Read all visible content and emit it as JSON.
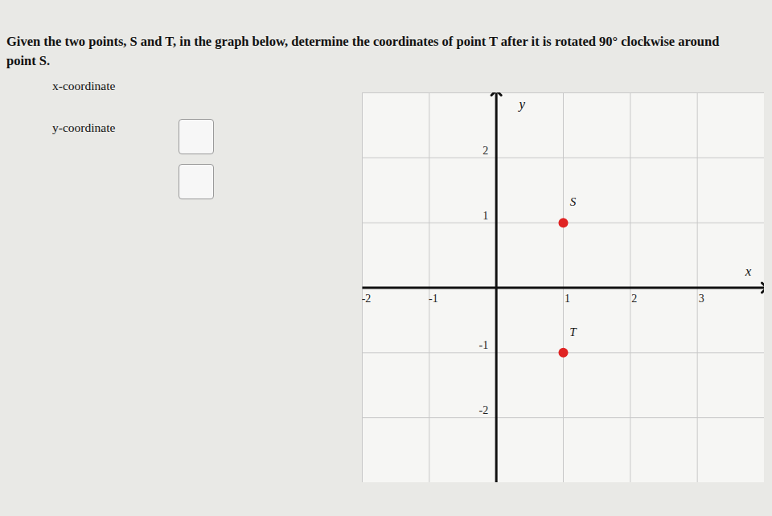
{
  "question": "Given the two points, S and T, in the graph below, determine the coordinates of point T after it is rotated 90° clockwise around point S.",
  "fields": [
    "x-coordinate",
    "y-coordinate"
  ],
  "chart_data": {
    "type": "scatter",
    "x_label": "x",
    "y_label": "y",
    "xlim": [
      -2,
      4
    ],
    "ylim": [
      -3,
      3
    ],
    "xticks": [
      -2,
      -1,
      1,
      2,
      3
    ],
    "yticks": [
      -2,
      -1,
      1,
      2
    ],
    "grid": true,
    "series": [
      {
        "name": "S",
        "color": "#e02424",
        "x": [
          1
        ],
        "values": [
          1
        ]
      },
      {
        "name": "T",
        "color": "#e02424",
        "x": [
          1
        ],
        "values": [
          -1
        ]
      }
    ]
  }
}
